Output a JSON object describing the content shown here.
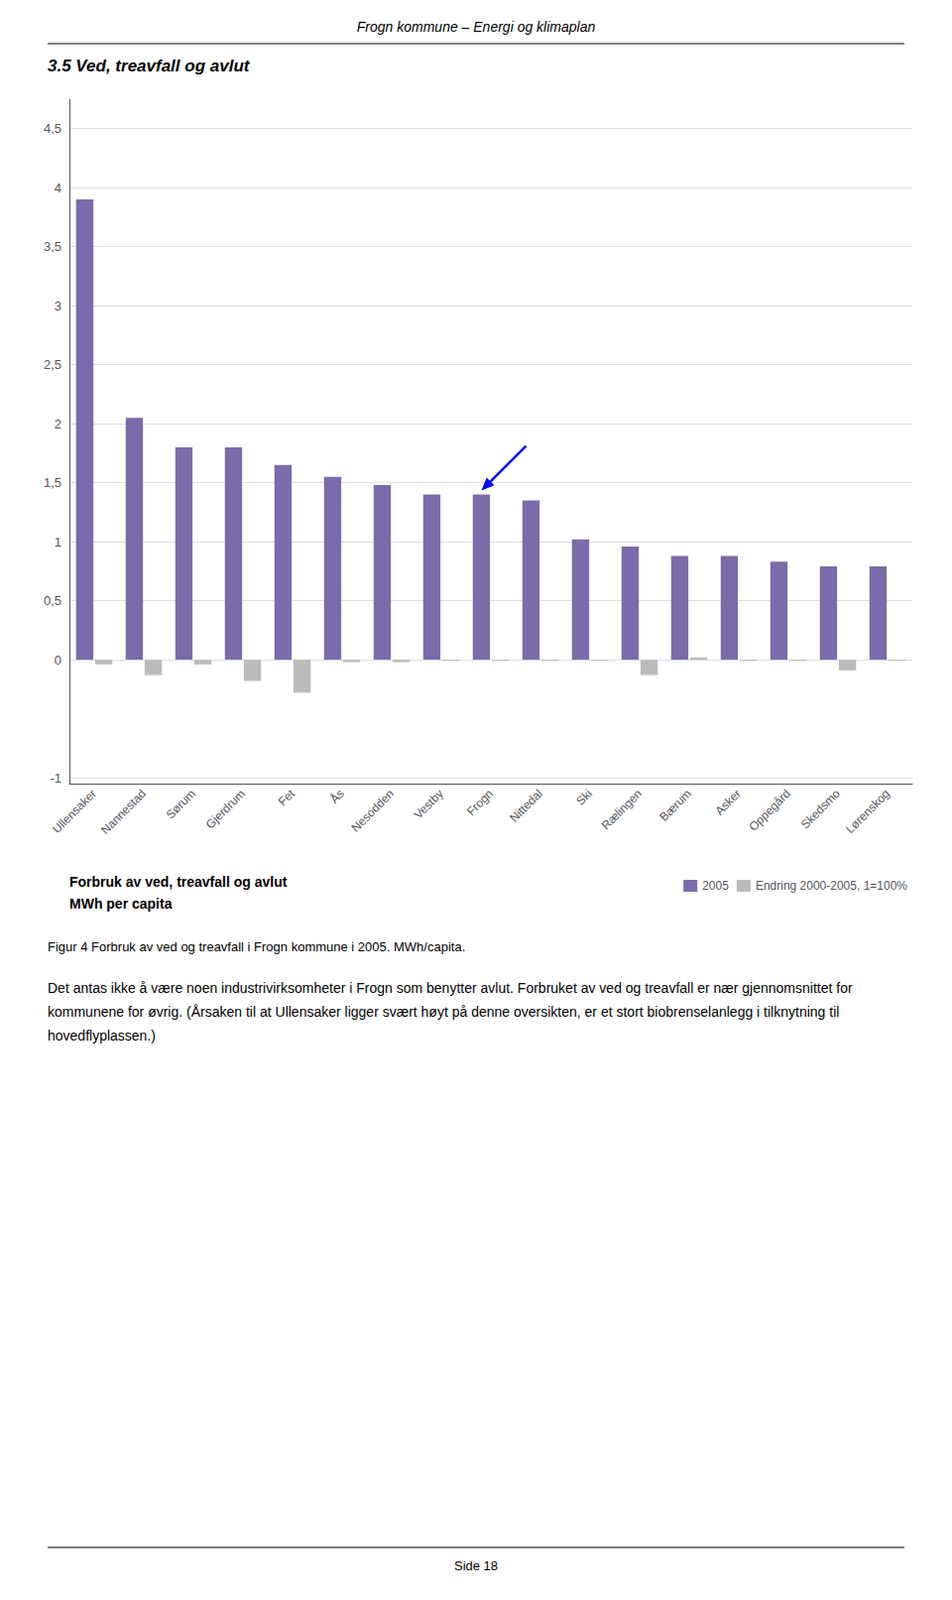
{
  "header": "Frogn kommune – Energi og klimaplan",
  "title": "3.5 Ved, treavfall og avlut",
  "caption": "Figur 4 Forbruk av ved og treavfall i Frogn kommune i 2005. MWh/capita.",
  "body_text": "Det antas ikke å være noen industrivirksomheter i Frogn som benytter avlut. Forbruket av ved og treavfall er nær gjennomsnittet for kommunene for øvrig. (Årsaken til at Ullensaker ligger svært høyt på denne oversikten, er et stort biobrenselanlegg i tilknytning til hovedflyplassen.)",
  "page_label": "Side 18",
  "chart_data": {
    "type": "bar",
    "categories": [
      "Ullensaker",
      "Nannestad",
      "Sørum",
      "Gjerdrum",
      "Fet",
      "Ås",
      "Nesodden",
      "Vestby",
      "Frogn",
      "Nittedal",
      "Ski",
      "Rælingen",
      "Bærum",
      "Asker",
      "Oppegård",
      "Skedsmo",
      "Lørenskog"
    ],
    "series": [
      {
        "name": "2005",
        "color": "#7B6BAB",
        "values": [
          3.9,
          2.05,
          1.8,
          1.8,
          1.65,
          1.55,
          1.48,
          1.4,
          1.4,
          1.35,
          1.02,
          0.96,
          0.88,
          0.88,
          0.83,
          0.79,
          0.79
        ]
      },
      {
        "name": "Endring 2000-2005, 1=100%",
        "color": "#BBBBBB",
        "values": [
          -0.04,
          -0.13,
          -0.04,
          -0.18,
          -0.28,
          -0.02,
          -0.02,
          -0.01,
          -0.01,
          -0.01,
          -0.01,
          -0.13,
          0.02,
          -0.01,
          -0.01,
          -0.09,
          -0.01
        ]
      }
    ],
    "ylabel": [
      "Forbruk av ved, treavfall og avlut",
      "MWh per capita"
    ],
    "ylim": [
      -1.05,
      4.75
    ],
    "yticks": [
      -1,
      0,
      {
        "value": 0.5,
        "label": "0,5"
      },
      1,
      {
        "value": 1.5,
        "label": "1,5"
      },
      2,
      {
        "value": 2.5,
        "label": "2,5"
      },
      3,
      {
        "value": 3.5,
        "label": "3,5"
      },
      4,
      {
        "value": 4.5,
        "label": "4,5"
      }
    ],
    "grid": true,
    "legend": "lower right",
    "annotations": [
      {
        "type": "arrow",
        "category": "Frogn",
        "color": "blue"
      }
    ]
  }
}
